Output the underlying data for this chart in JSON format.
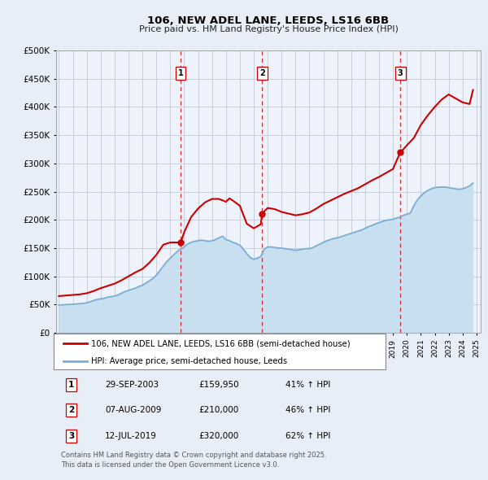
{
  "title": "106, NEW ADEL LANE, LEEDS, LS16 6BB",
  "subtitle": "Price paid vs. HM Land Registry's House Price Index (HPI)",
  "legend_property": "106, NEW ADEL LANE, LEEDS, LS16 6BB (semi-detached house)",
  "legend_hpi": "HPI: Average price, semi-detached house, Leeds",
  "property_color": "#cc0000",
  "hpi_color": "#7aadd4",
  "hpi_fill_color": "#c8dff0",
  "background_color": "#e8eef8",
  "plot_bg_color": "#eef2fa",
  "ylim": [
    0,
    500000
  ],
  "ytick_labels": [
    "£0",
    "£50K",
    "£100K",
    "£150K",
    "£200K",
    "£250K",
    "£300K",
    "£350K",
    "£400K",
    "£450K",
    "£500K"
  ],
  "ytick_values": [
    0,
    50000,
    100000,
    150000,
    200000,
    250000,
    300000,
    350000,
    400000,
    450000,
    500000
  ],
  "sale_markers": [
    {
      "label": "1",
      "price": 159950,
      "x": 2003.75
    },
    {
      "label": "2",
      "price": 210000,
      "x": 2009.6
    },
    {
      "label": "3",
      "price": 320000,
      "x": 2019.53
    }
  ],
  "table_rows": [
    {
      "num": "1",
      "date": "29-SEP-2003",
      "price": "£159,950",
      "change": "41% ↑ HPI"
    },
    {
      "num": "2",
      "date": "07-AUG-2009",
      "price": "£210,000",
      "change": "46% ↑ HPI"
    },
    {
      "num": "3",
      "date": "12-JUL-2019",
      "price": "£320,000",
      "change": "62% ↑ HPI"
    }
  ],
  "footer": "Contains HM Land Registry data © Crown copyright and database right 2025.\nThis data is licensed under the Open Government Licence v3.0.",
  "hpi_data_years": [
    1995.0,
    1995.25,
    1995.5,
    1995.75,
    1996.0,
    1996.25,
    1996.5,
    1996.75,
    1997.0,
    1997.25,
    1997.5,
    1997.75,
    1998.0,
    1998.25,
    1998.5,
    1998.75,
    1999.0,
    1999.25,
    1999.5,
    1999.75,
    2000.0,
    2000.25,
    2000.5,
    2000.75,
    2001.0,
    2001.25,
    2001.5,
    2001.75,
    2002.0,
    2002.25,
    2002.5,
    2002.75,
    2003.0,
    2003.25,
    2003.5,
    2003.75,
    2004.0,
    2004.25,
    2004.5,
    2004.75,
    2005.0,
    2005.25,
    2005.5,
    2005.75,
    2006.0,
    2006.25,
    2006.5,
    2006.75,
    2007.0,
    2007.25,
    2007.5,
    2007.75,
    2008.0,
    2008.25,
    2008.5,
    2008.75,
    2009.0,
    2009.25,
    2009.5,
    2009.75,
    2010.0,
    2010.25,
    2010.5,
    2010.75,
    2011.0,
    2011.25,
    2011.5,
    2011.75,
    2012.0,
    2012.25,
    2012.5,
    2012.75,
    2013.0,
    2013.25,
    2013.5,
    2013.75,
    2014.0,
    2014.25,
    2014.5,
    2014.75,
    2015.0,
    2015.25,
    2015.5,
    2015.75,
    2016.0,
    2016.25,
    2016.5,
    2016.75,
    2017.0,
    2017.25,
    2017.5,
    2017.75,
    2018.0,
    2018.25,
    2018.5,
    2018.75,
    2019.0,
    2019.25,
    2019.5,
    2019.75,
    2020.0,
    2020.25,
    2020.5,
    2020.75,
    2021.0,
    2021.25,
    2021.5,
    2021.75,
    2022.0,
    2022.25,
    2022.5,
    2022.75,
    2023.0,
    2023.25,
    2023.5,
    2023.75,
    2024.0,
    2024.25,
    2024.5,
    2024.75
  ],
  "hpi_data_values": [
    49000,
    49500,
    50000,
    50200,
    50500,
    51000,
    51500,
    52000,
    53000,
    55000,
    57000,
    59000,
    60000,
    61000,
    63000,
    64000,
    65000,
    67000,
    70000,
    73000,
    75000,
    77000,
    79000,
    82000,
    84000,
    88000,
    92000,
    96000,
    102000,
    110000,
    118000,
    126000,
    132000,
    138000,
    144000,
    148000,
    152000,
    157000,
    160000,
    162000,
    163000,
    164000,
    163000,
    162000,
    163000,
    165000,
    168000,
    171000,
    165000,
    163000,
    160000,
    158000,
    155000,
    148000,
    140000,
    133000,
    130000,
    132000,
    135000,
    148000,
    152000,
    152000,
    151000,
    150000,
    150000,
    149000,
    148000,
    147000,
    146000,
    147000,
    148000,
    149000,
    149000,
    151000,
    154000,
    157000,
    160000,
    163000,
    165000,
    167000,
    168000,
    170000,
    172000,
    174000,
    176000,
    178000,
    180000,
    182000,
    185000,
    188000,
    190000,
    193000,
    195000,
    197000,
    199000,
    200000,
    201000,
    203000,
    205000,
    208000,
    210000,
    212000,
    225000,
    235000,
    242000,
    248000,
    252000,
    255000,
    257000,
    258000,
    258000,
    258000,
    257000,
    256000,
    255000,
    254000,
    255000,
    257000,
    260000,
    265000
  ],
  "prop_data_years": [
    1995.0,
    1995.5,
    1996.0,
    1996.5,
    1997.0,
    1997.5,
    1998.0,
    1998.5,
    1999.0,
    1999.5,
    2000.0,
    2000.5,
    2001.0,
    2001.5,
    2002.0,
    2002.5,
    2003.0,
    2003.5,
    2003.75,
    2004.0,
    2004.5,
    2005.0,
    2005.5,
    2006.0,
    2006.5,
    2007.0,
    2007.25,
    2007.5,
    2008.0,
    2008.5,
    2009.0,
    2009.5,
    2009.6,
    2009.75,
    2010.0,
    2010.5,
    2011.0,
    2011.5,
    2012.0,
    2012.5,
    2013.0,
    2013.5,
    2014.0,
    2014.5,
    2015.0,
    2015.5,
    2016.0,
    2016.5,
    2017.0,
    2017.5,
    2018.0,
    2018.5,
    2019.0,
    2019.53,
    2019.75,
    2020.0,
    2020.5,
    2021.0,
    2021.5,
    2022.0,
    2022.5,
    2023.0,
    2023.5,
    2024.0,
    2024.5,
    2024.75
  ],
  "prop_data_values": [
    65000,
    66000,
    67000,
    68000,
    70000,
    74000,
    79000,
    83000,
    87000,
    93000,
    100000,
    107000,
    113000,
    124000,
    138000,
    156000,
    159950,
    159950,
    159950,
    178000,
    205000,
    220000,
    231000,
    237000,
    237000,
    232000,
    238000,
    234000,
    225000,
    193000,
    185000,
    192000,
    210000,
    215000,
    221000,
    219000,
    214000,
    211000,
    208000,
    210000,
    213000,
    220000,
    228000,
    234000,
    240000,
    246000,
    251000,
    256000,
    263000,
    270000,
    276000,
    283000,
    290000,
    320000,
    325000,
    332000,
    345000,
    368000,
    385000,
    400000,
    413000,
    422000,
    415000,
    408000,
    405000,
    430000
  ]
}
